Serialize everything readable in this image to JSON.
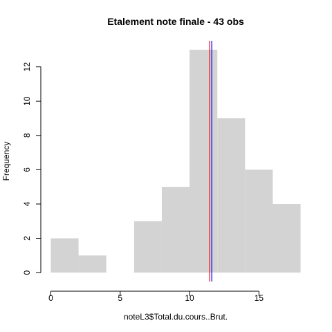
{
  "chart_data": {
    "type": "histogram",
    "title": "Etalement note finale - 43 obs",
    "xlabel": "noteL3$Total.du.cours..Brut.",
    "ylabel": "Frequency",
    "bins": [
      {
        "start": 0,
        "end": 2,
        "count": 2
      },
      {
        "start": 2,
        "end": 4,
        "count": 1
      },
      {
        "start": 4,
        "end": 6,
        "count": 0
      },
      {
        "start": 6,
        "end": 8,
        "count": 3
      },
      {
        "start": 8,
        "end": 10,
        "count": 5
      },
      {
        "start": 10,
        "end": 12,
        "count": 13
      },
      {
        "start": 12,
        "end": 14,
        "count": 9
      },
      {
        "start": 14,
        "end": 16,
        "count": 6
      },
      {
        "start": 16,
        "end": 18,
        "count": 4
      }
    ],
    "x_ticks": [
      0,
      5,
      10,
      15
    ],
    "y_ticks": [
      0,
      2,
      4,
      6,
      8,
      10,
      12
    ],
    "xlim": [
      -0.72,
      18.72
    ],
    "ylim": [
      -0.52,
      13.52
    ],
    "bar_color": "#d3d3d3",
    "vertical_lines": [
      {
        "x": 11.45,
        "color": "#ff0000"
      },
      {
        "x": 11.6,
        "color": "#0000ff"
      }
    ],
    "grid": false
  }
}
